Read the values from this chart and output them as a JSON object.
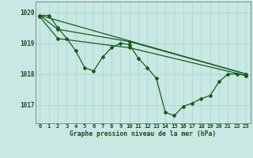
{
  "bg_color": "#c8e8e4",
  "grid_color": "#b0d8d4",
  "line_color": "#1a5c1a",
  "title": "Graphe pression niveau de la mer (hPa)",
  "xlim": [
    -0.5,
    23.5
  ],
  "ylim": [
    1016.4,
    1020.35
  ],
  "yticks": [
    1017,
    1018,
    1019,
    1020
  ],
  "xticks": [
    0,
    1,
    2,
    3,
    4,
    5,
    6,
    7,
    8,
    9,
    10,
    11,
    12,
    13,
    14,
    15,
    16,
    17,
    18,
    19,
    20,
    21,
    22,
    23
  ],
  "series1_x": [
    0,
    1,
    2,
    3,
    4,
    5,
    6,
    7,
    8,
    9,
    10,
    11,
    12,
    13,
    14,
    15,
    16,
    17,
    18,
    19,
    20,
    21,
    22,
    23
  ],
  "series1_y": [
    1019.9,
    1019.9,
    1019.5,
    1019.15,
    1018.75,
    1018.2,
    1018.1,
    1018.55,
    1018.85,
    1019.0,
    1018.95,
    1018.5,
    1018.2,
    1017.85,
    1016.75,
    1016.65,
    1016.95,
    1017.05,
    1017.2,
    1017.3,
    1017.75,
    1018.0,
    1018.0,
    1017.95
  ],
  "series2_x": [
    0,
    23
  ],
  "series2_y": [
    1019.9,
    1018.0
  ],
  "series3_x": [
    0,
    2,
    10,
    23
  ],
  "series3_y": [
    1019.9,
    1019.45,
    1019.05,
    1018.0
  ],
  "series4_x": [
    0,
    2,
    10,
    23
  ],
  "series4_y": [
    1019.85,
    1019.15,
    1018.85,
    1017.95
  ]
}
